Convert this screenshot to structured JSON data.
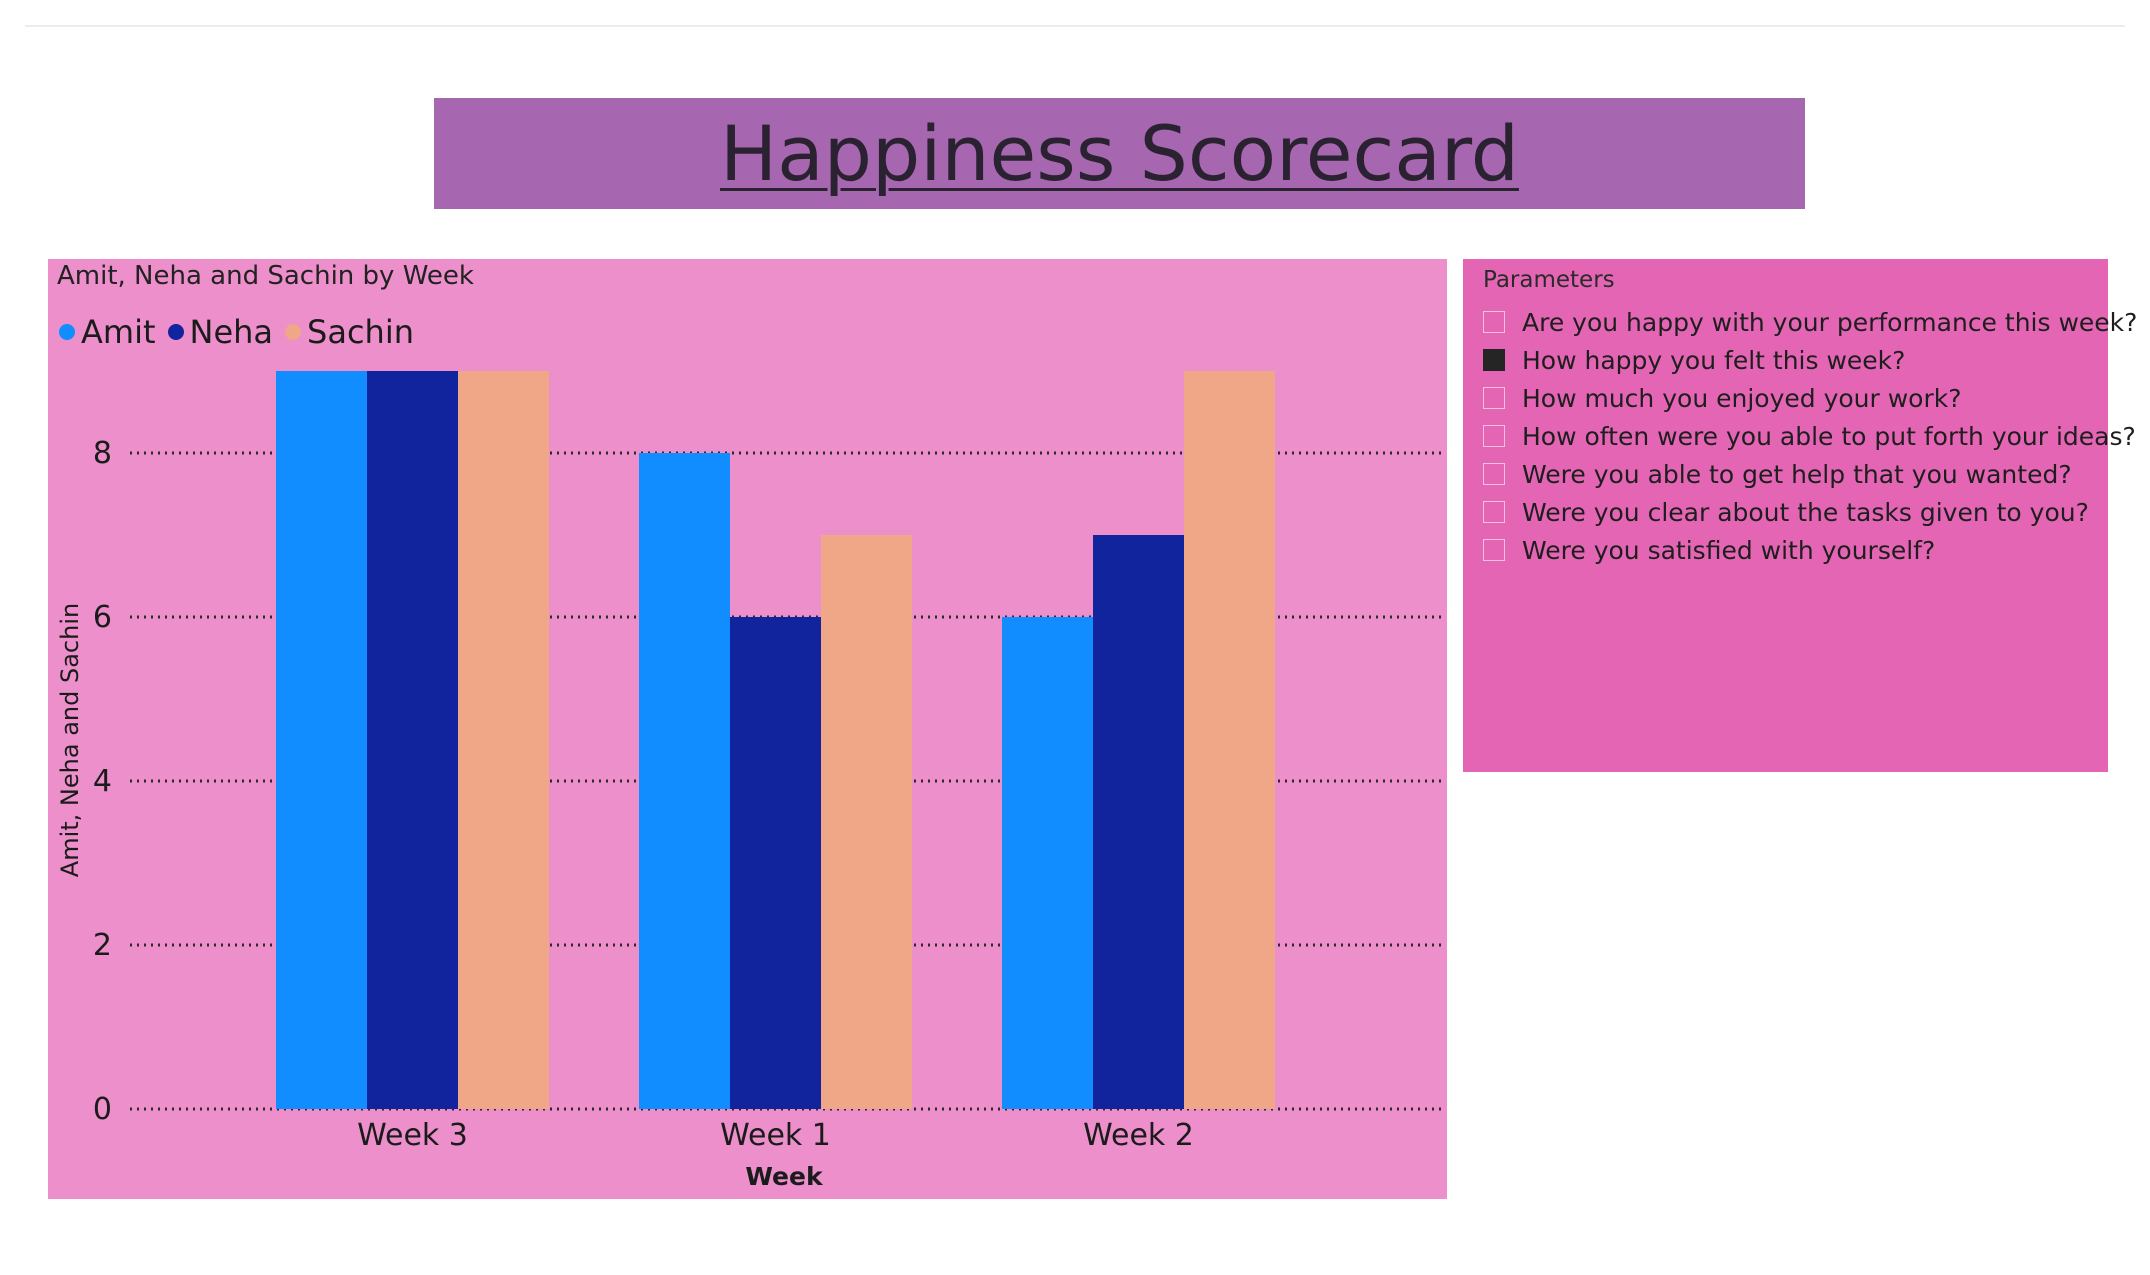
{
  "page": {
    "title": "Happiness Scorecard"
  },
  "chart_data": {
    "type": "bar",
    "title": "Amit, Neha and Sachin by Week",
    "xlabel": "Week",
    "ylabel": "Amit, Neha and Sachin",
    "categories": [
      "Week 3",
      "Week 1",
      "Week 2"
    ],
    "series": [
      {
        "name": "Amit",
        "color": "#118dff",
        "values": [
          9,
          8,
          6
        ]
      },
      {
        "name": "Neha",
        "color": "#12239e",
        "values": [
          9,
          6,
          7
        ]
      },
      {
        "name": "Sachin",
        "color": "#f0a787",
        "values": [
          9,
          7,
          9
        ]
      }
    ],
    "yticks": [
      0,
      2,
      4,
      6,
      8
    ],
    "ylim": [
      0,
      9
    ],
    "grid": true,
    "grid_style": "dotted",
    "legend_position": "top-left"
  },
  "slicer": {
    "title": "Parameters",
    "options": [
      {
        "label": "Are you happy with your performance this week?",
        "checked": false
      },
      {
        "label": "How happy you felt this week?",
        "checked": true
      },
      {
        "label": "How much you enjoyed your work?",
        "checked": false
      },
      {
        "label": "How often were you able to put forth your ideas?",
        "checked": false
      },
      {
        "label": "Were you able to get help that you wanted?",
        "checked": false
      },
      {
        "label": "Were you clear about the tasks given to you?",
        "checked": false
      },
      {
        "label": "Were you satisfied with yourself?",
        "checked": false
      }
    ]
  },
  "colors": {
    "title_banner": "#a667b0",
    "chart_panel": "#ed8fcb",
    "slicer_panel": "#e565b5"
  }
}
